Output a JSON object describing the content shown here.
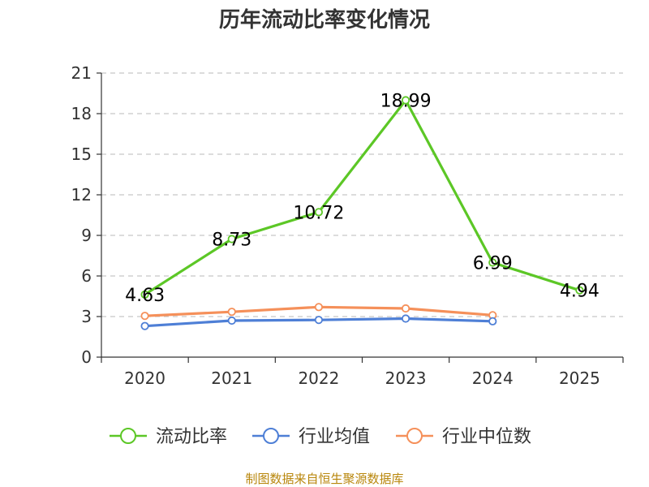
{
  "chart_data": {
    "type": "line",
    "title": "历年流动比率变化情况",
    "categories": [
      "2020",
      "2021",
      "2022",
      "2023",
      "2024",
      "2025"
    ],
    "ylim": [
      0,
      21
    ],
    "yticks": [
      0,
      3,
      6,
      9,
      12,
      15,
      18,
      21
    ],
    "grid": true,
    "legend_position": "bottom",
    "series": [
      {
        "name": "流动比率",
        "color": "#5cc726",
        "values": [
          4.63,
          8.73,
          10.72,
          18.99,
          6.99,
          4.94
        ],
        "data_labels": [
          "4.63",
          "8.73",
          "10.72",
          "18.99",
          "6.99",
          "4.94"
        ]
      },
      {
        "name": "行业均值",
        "color": "#4e7fd6",
        "values": [
          2.3,
          2.7,
          2.75,
          2.85,
          2.65,
          null
        ]
      },
      {
        "name": "行业中位数",
        "color": "#f5905a",
        "values": [
          3.05,
          3.35,
          3.7,
          3.6,
          3.1,
          null
        ]
      }
    ]
  },
  "source_text": "制图数据来自恒生聚源数据库"
}
